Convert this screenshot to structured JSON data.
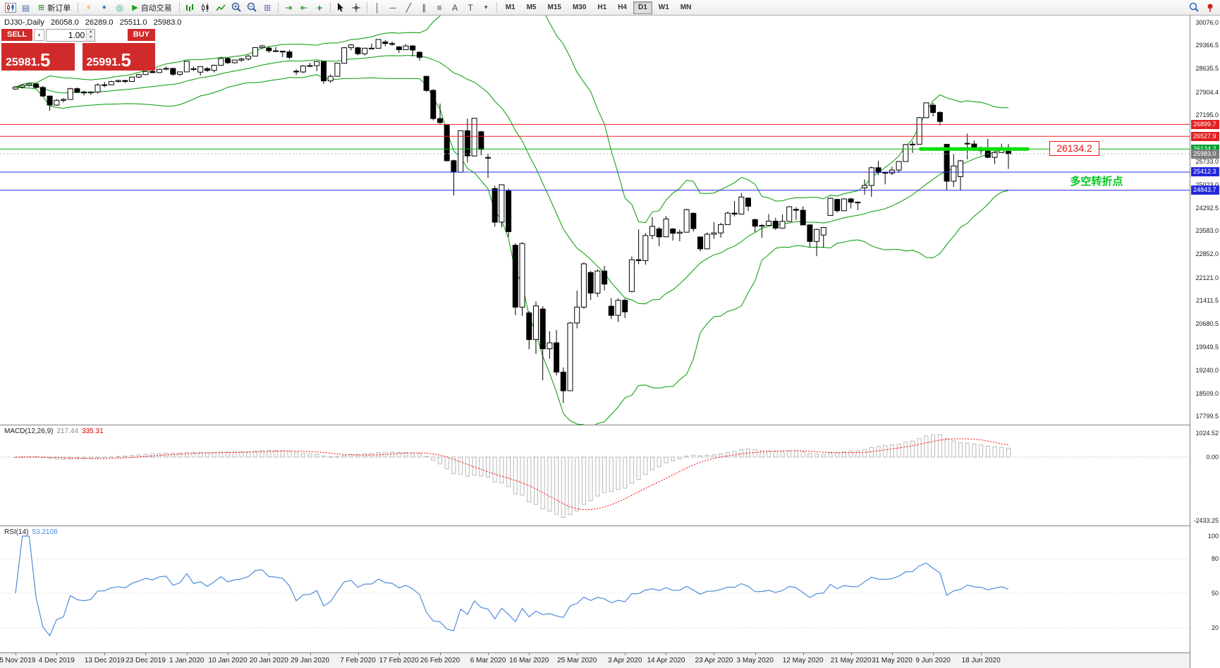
{
  "toolbar": {
    "new_order_label": "新订单",
    "autotrading_label": "自动交易",
    "timeframes": [
      "M1",
      "M5",
      "M15",
      "M30",
      "H1",
      "H4",
      "D1",
      "W1",
      "MN"
    ],
    "active_timeframe": "D1",
    "icons": [
      {
        "name": "profiles-icon",
        "glyph": "▤"
      },
      {
        "name": "new-order-plus-icon",
        "glyph": "⊞"
      },
      {
        "name": "lightning-icon",
        "glyph": "⚡"
      },
      {
        "name": "user-profile-icon",
        "glyph": "●"
      },
      {
        "name": "metaeditor-icon",
        "glyph": "◎"
      },
      {
        "name": "autotrading-play-icon",
        "glyph": "▶"
      },
      {
        "name": "tile-windows-icon",
        "glyph": "⊞"
      },
      {
        "name": "auto-scroll-icon",
        "glyph": "⇥"
      },
      {
        "name": "chart-shift-icon",
        "glyph": "⇤"
      },
      {
        "name": "indicators-icon",
        "glyph": "+"
      },
      {
        "name": "vertical-line-icon",
        "glyph": "│"
      },
      {
        "name": "horizontal-line-icon",
        "glyph": "─"
      },
      {
        "name": "trendline-icon",
        "glyph": "╱"
      },
      {
        "name": "equidistant-channel-icon",
        "glyph": "∥"
      },
      {
        "name": "fibonacci-icon",
        "glyph": "≡"
      },
      {
        "name": "text-icon",
        "glyph": "A"
      },
      {
        "name": "text-label-icon",
        "glyph": "T"
      },
      {
        "name": "arrows-menu-icon",
        "glyph": "▾"
      }
    ]
  },
  "header": {
    "symbol_period": "DJ30-,Daily",
    "open": "26058.0",
    "high": "26289.0",
    "low": "25511.0",
    "close": "25983.0"
  },
  "trade_panel": {
    "sell_label": "SELL",
    "buy_label": "BUY",
    "quantity": "1.00",
    "preset_dropdown_glyph": "▾",
    "spinner_up_glyph": "▴",
    "spinner_down_glyph": "▾",
    "sell_price_main": "25981.",
    "sell_price_big": "5",
    "buy_price_main": "25991.",
    "buy_price_big": "5"
  },
  "chart_data": {
    "type": "candlestick",
    "symbol": "DJ30-",
    "timeframe": "Daily",
    "candle_format": "[open,high,low,close]",
    "candles": [
      [
        28005,
        28090,
        27980,
        28066
      ],
      [
        28066,
        28150,
        28020,
        28121
      ],
      [
        28121,
        28175,
        28080,
        28164
      ],
      [
        28164,
        28180,
        28025,
        28051
      ],
      [
        28051,
        28100,
        27770,
        27783
      ],
      [
        27783,
        27800,
        27325,
        27503
      ],
      [
        27503,
        27690,
        27480,
        27650
      ],
      [
        27650,
        27720,
        27580,
        27678
      ],
      [
        27678,
        28040,
        27670,
        28015
      ],
      [
        28015,
        28050,
        27880,
        27910
      ],
      [
        27910,
        27950,
        27800,
        27882
      ],
      [
        27882,
        27930,
        27820,
        27911
      ],
      [
        27911,
        28180,
        27860,
        28132
      ],
      [
        28132,
        28225,
        28060,
        28135
      ],
      [
        28135,
        28260,
        28130,
        28236
      ],
      [
        28236,
        28300,
        28200,
        28267
      ],
      [
        28267,
        28290,
        28190,
        28239
      ],
      [
        28239,
        28390,
        28230,
        28377
      ],
      [
        28377,
        28470,
        28340,
        28455
      ],
      [
        28455,
        28570,
        28440,
        28551
      ],
      [
        28551,
        28580,
        28500,
        28516
      ],
      [
        28516,
        28630,
        28510,
        28621
      ],
      [
        28621,
        28700,
        28590,
        28645
      ],
      [
        28645,
        28660,
        28420,
        28462
      ],
      [
        28462,
        28550,
        28420,
        28538
      ],
      [
        28538,
        28880,
        28530,
        28869
      ],
      [
        28630,
        28710,
        28560,
        28635
      ],
      [
        28530,
        28710,
        28420,
        28703
      ],
      [
        28640,
        28690,
        28540,
        28584
      ],
      [
        28584,
        28760,
        28520,
        28745
      ],
      [
        28745,
        28990,
        28740,
        28957
      ],
      [
        28957,
        28990,
        28780,
        28824
      ],
      [
        28824,
        28910,
        28800,
        28907
      ],
      [
        28907,
        28980,
        28850,
        28939
      ],
      [
        28939,
        29060,
        28890,
        29030
      ],
      [
        29030,
        29300,
        29020,
        29298
      ],
      [
        29298,
        29380,
        29260,
        29348
      ],
      [
        29280,
        29340,
        29130,
        29196
      ],
      [
        29196,
        29320,
        29150,
        29186
      ],
      [
        29186,
        29190,
        29000,
        29160
      ],
      [
        29160,
        29230,
        28940,
        28990
      ],
      [
        28560,
        28620,
        28440,
        28536
      ],
      [
        28536,
        28750,
        28500,
        28723
      ],
      [
        28723,
        28820,
        28690,
        28734
      ],
      [
        28734,
        28870,
        28560,
        28859
      ],
      [
        28859,
        28860,
        28160,
        28256
      ],
      [
        28256,
        28460,
        28200,
        28400
      ],
      [
        28400,
        28820,
        28390,
        28808
      ],
      [
        28808,
        29310,
        28800,
        29291
      ],
      [
        29291,
        29400,
        29210,
        29380
      ],
      [
        29290,
        29320,
        29060,
        29103
      ],
      [
        29103,
        29290,
        29050,
        29277
      ],
      [
        29277,
        29420,
        29250,
        29276
      ],
      [
        29276,
        29560,
        29270,
        29551
      ],
      [
        29470,
        29540,
        29340,
        29423
      ],
      [
        29423,
        29480,
        29350,
        29398
      ],
      [
        29320,
        29340,
        29130,
        29232
      ],
      [
        29232,
        29400,
        29220,
        29348
      ],
      [
        29348,
        29370,
        29020,
        29220
      ],
      [
        29150,
        29180,
        28890,
        28992
      ],
      [
        28400,
        28410,
        27910,
        27961
      ],
      [
        27961,
        28000,
        27030,
        27081
      ],
      [
        27081,
        27550,
        26900,
        26958
      ],
      [
        26880,
        26900,
        25750,
        25767
      ],
      [
        25767,
        25800,
        24680,
        25409
      ],
      [
        25409,
        26710,
        25390,
        26703
      ],
      [
        26703,
        27080,
        25710,
        25917
      ],
      [
        25917,
        27100,
        25900,
        27091
      ],
      [
        26670,
        26700,
        25940,
        26121
      ],
      [
        25870,
        25990,
        25230,
        25865
      ],
      [
        24900,
        24990,
        23710,
        23851
      ],
      [
        23851,
        25020,
        23690,
        25018
      ],
      [
        24830,
        24900,
        23390,
        23553
      ],
      [
        23130,
        23190,
        20950,
        21201
      ],
      [
        21201,
        23230,
        20930,
        23186
      ],
      [
        21020,
        21070,
        19880,
        20189
      ],
      [
        20189,
        21380,
        19740,
        21237
      ],
      [
        21140,
        21230,
        18920,
        19899
      ],
      [
        19899,
        20450,
        19590,
        20087
      ],
      [
        20087,
        20490,
        19070,
        19174
      ],
      [
        19174,
        19320,
        18210,
        18592
      ],
      [
        18592,
        20740,
        18590,
        20705
      ],
      [
        20705,
        21720,
        20540,
        21200
      ],
      [
        21200,
        22600,
        21150,
        22552
      ],
      [
        22280,
        22330,
        21430,
        21637
      ],
      [
        21637,
        22380,
        21520,
        22327
      ],
      [
        22327,
        22490,
        21720,
        21917
      ],
      [
        21230,
        21480,
        20830,
        20944
      ],
      [
        20944,
        21480,
        20740,
        21413
      ],
      [
        21413,
        21460,
        20860,
        21053
      ],
      [
        21690,
        22780,
        21660,
        22680
      ],
      [
        22680,
        23620,
        22540,
        22654
      ],
      [
        22654,
        23510,
        22520,
        23434
      ],
      [
        23434,
        24010,
        23320,
        23719
      ],
      [
        23640,
        23700,
        23100,
        23391
      ],
      [
        23391,
        24040,
        23390,
        23950
      ],
      [
        23640,
        23660,
        23280,
        23504
      ],
      [
        23504,
        23620,
        23250,
        23538
      ],
      [
        23538,
        24270,
        23530,
        24242
      ],
      [
        24130,
        24150,
        23560,
        23651
      ],
      [
        23390,
        23400,
        22940,
        23019
      ],
      [
        23019,
        23530,
        23010,
        23476
      ],
      [
        23476,
        23850,
        23330,
        23515
      ],
      [
        23515,
        23830,
        23370,
        23775
      ],
      [
        23775,
        24180,
        23770,
        24134
      ],
      [
        24134,
        24510,
        24030,
        24102
      ],
      [
        24102,
        24760,
        24100,
        24634
      ],
      [
        24600,
        24620,
        24200,
        24346
      ],
      [
        23930,
        23960,
        23540,
        23724
      ],
      [
        23724,
        23790,
        23360,
        23749
      ],
      [
        23749,
        24100,
        23730,
        23883
      ],
      [
        23883,
        23990,
        23610,
        23665
      ],
      [
        23665,
        24090,
        23660,
        23876
      ],
      [
        23876,
        24350,
        23870,
        24331
      ],
      [
        24250,
        24320,
        23920,
        24222
      ],
      [
        24222,
        24340,
        23760,
        23765
      ],
      [
        23765,
        23780,
        23070,
        23248
      ],
      [
        23248,
        23650,
        22790,
        23625
      ],
      [
        23450,
        23700,
        23050,
        23685
      ],
      [
        24060,
        24620,
        24050,
        24597
      ],
      [
        24560,
        24580,
        24150,
        24207
      ],
      [
        24207,
        24600,
        24200,
        24576
      ],
      [
        24576,
        24610,
        24280,
        24474
      ],
      [
        24474,
        24500,
        24230,
        24465
      ],
      [
        24920,
        25180,
        24710,
        24995
      ],
      [
        24995,
        25580,
        24640,
        25548
      ],
      [
        25548,
        25760,
        25320,
        25401
      ],
      [
        25401,
        25430,
        25030,
        25383
      ],
      [
        25383,
        25580,
        25320,
        25475
      ],
      [
        25475,
        25750,
        25390,
        25743
      ],
      [
        25743,
        26290,
        25740,
        26270
      ],
      [
        26270,
        26380,
        26010,
        26282
      ],
      [
        26282,
        27130,
        26280,
        27111
      ],
      [
        27111,
        27580,
        27090,
        27572
      ],
      [
        27500,
        27570,
        27150,
        27272
      ],
      [
        27272,
        27310,
        26870,
        26990
      ],
      [
        26280,
        26290,
        24843,
        25128
      ],
      [
        25128,
        25965,
        24950,
        25605
      ],
      [
        25270,
        25790,
        24850,
        25763
      ],
      [
        26310,
        26610,
        25810,
        26290
      ],
      [
        26290,
        26400,
        26070,
        26120
      ],
      [
        26120,
        26210,
        25950,
        26080
      ],
      [
        26080,
        26450,
        25850,
        25871
      ],
      [
        25871,
        26060,
        25670,
        26025
      ],
      [
        26025,
        26300,
        26020,
        26156
      ],
      [
        26058,
        26289,
        25511,
        25983
      ]
    ],
    "date_labels": [
      {
        "label": "25 Nov 2019",
        "bar": 0
      },
      {
        "label": "4 Dec 2019",
        "bar": 6
      },
      {
        "label": "13 Dec 2019",
        "bar": 13
      },
      {
        "label": "23 Dec 2019",
        "bar": 19
      },
      {
        "label": "1 Jan 2020",
        "bar": 25
      },
      {
        "label": "10 Jan 2020",
        "bar": 31
      },
      {
        "label": "20 Jan 2020",
        "bar": 37
      },
      {
        "label": "29 Jan 2020",
        "bar": 43
      },
      {
        "label": "7 Feb 2020",
        "bar": 50
      },
      {
        "label": "17 Feb 2020",
        "bar": 56
      },
      {
        "label": "26 Feb 2020",
        "bar": 62
      },
      {
        "label": "6 Mar 2020",
        "bar": 69
      },
      {
        "label": "16 Mar 2020",
        "bar": 75
      },
      {
        "label": "25 Mar 2020",
        "bar": 82
      },
      {
        "label": "3 Apr 2020",
        "bar": 89
      },
      {
        "label": "14 Apr 2020",
        "bar": 95
      },
      {
        "label": "23 Apr 2020",
        "bar": 102
      },
      {
        "label": "3 May 2020",
        "bar": 108
      },
      {
        "label": "12 May 2020",
        "bar": 115
      },
      {
        "label": "21 May 2020",
        "bar": 122
      },
      {
        "label": "31 May 2020",
        "bar": 128
      },
      {
        "label": "9 Jun 2020",
        "bar": 134
      },
      {
        "label": "18 Jun 2020",
        "bar": 141
      }
    ],
    "price_ticks": [
      "30076.0",
      "29366.5",
      "28635.5",
      "27904.4",
      "27195.0",
      "26464.0",
      "25733.0",
      "25023.0",
      "24292.5",
      "23583.0",
      "22852.0",
      "22121.0",
      "21411.5",
      "20680.5",
      "19949.5",
      "19240.0",
      "18509.0",
      "17799.5"
    ],
    "price_tags": [
      {
        "label": "26899.7",
        "color": "#e22020"
      },
      {
        "label": "26527.9",
        "color": "#e22020"
      },
      {
        "label": "26134.2",
        "color": "#00a32e"
      },
      {
        "label": "25983.0",
        "color": "#7d7d7d"
      },
      {
        "label": "25412.3",
        "color": "#2228d8"
      },
      {
        "label": "24843.7",
        "color": "#2228d8"
      }
    ],
    "hlines": [
      {
        "price": 26899.7,
        "color": "#f02020"
      },
      {
        "price": 26527.9,
        "color": "#f02020"
      },
      {
        "price": 26134.2,
        "color": "#00b400"
      },
      {
        "price": 25412.3,
        "color": "#2828e8"
      },
      {
        "price": 24843.7,
        "color": "#2828e8"
      }
    ],
    "bid_line": {
      "price": 25983.0,
      "color": "#b4b4b4"
    },
    "trend_segment": {
      "price": 26134.2,
      "bar_start": 132,
      "bar_end": 148,
      "color": "#00e000"
    },
    "price_label_box": {
      "text": "26134.2",
      "bar": 151,
      "color": "#ee1111"
    },
    "annotation": {
      "text": "多空转折点",
      "bar": 154,
      "price": 25170,
      "color": "#00c81e"
    },
    "bollinger": {
      "period": 20,
      "deviation": 2,
      "color": "#009a00"
    },
    "indicators": {
      "macd": {
        "label": "MACD(12,26,9)",
        "value_main": "217.44",
        "value_signal": "335.31",
        "scale": [
          "1024.52",
          "0.00",
          "-2433.25"
        ],
        "histogram_color": "#b8b8b8",
        "signal_color": "#ff0000"
      },
      "rsi": {
        "label": "RSI(14)",
        "value": "53.2108",
        "scale": [
          "100",
          "80",
          "50",
          "20"
        ],
        "color": "#4f8cdb"
      }
    },
    "visible_price_range": [
      17799.5,
      30076.0
    ]
  }
}
